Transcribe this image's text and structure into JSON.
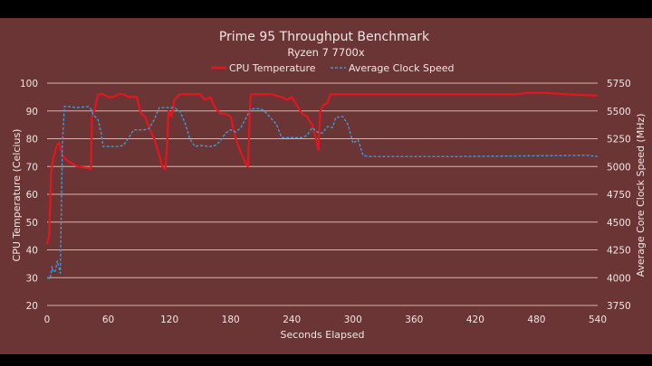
{
  "chart_data": {
    "type": "line",
    "title": "Prime 95 Throughput Benchmark",
    "subtitle": "Ryzen 7 7700x",
    "xlabel": "Seconds Elapsed",
    "ylabel_left": "CPU Temperature (Celcius)",
    "ylabel_right": "Average Core Clock Speed (MHz)",
    "xlim": [
      0,
      540
    ],
    "xticks": [
      0,
      60,
      120,
      180,
      240,
      300,
      360,
      420,
      480,
      540
    ],
    "ylim_left": [
      20,
      100
    ],
    "yticks_left": [
      20,
      30,
      40,
      50,
      60,
      70,
      80,
      90,
      100
    ],
    "ylim_right": [
      3750,
      5750
    ],
    "yticks_right": [
      3750,
      4000,
      4250,
      4500,
      4750,
      5000,
      5250,
      5500,
      5750
    ],
    "grid": true,
    "legend_position": "top-center",
    "colors": {
      "background": "#6c3535",
      "grid": "#d8b3ab",
      "temperature": "#e3161f",
      "clock": "#3b9bd8"
    },
    "series": [
      {
        "name": "CPU Temperature",
        "axis": "left",
        "style": "solid",
        "x": [
          0,
          2,
          4,
          6,
          10,
          12,
          15,
          20,
          25,
          30,
          40,
          43,
          44,
          47,
          50,
          55,
          60,
          65,
          70,
          75,
          80,
          85,
          88,
          92,
          96,
          100,
          105,
          110,
          113,
          116,
          118,
          119,
          122,
          125,
          130,
          140,
          150,
          155,
          160,
          165,
          170,
          175,
          180,
          185,
          190,
          195,
          197,
          199,
          200,
          210,
          220,
          230,
          235,
          240,
          245,
          250,
          255,
          260,
          263,
          266,
          268,
          271,
          275,
          278,
          300,
          400,
          460,
          470,
          490,
          510,
          540
        ],
        "y": [
          42,
          45,
          68,
          73,
          78,
          78.5,
          74,
          72,
          71,
          70,
          69.5,
          69,
          88,
          91,
          96,
          96,
          95,
          95,
          96,
          96,
          95,
          95,
          95,
          89,
          88,
          84,
          80,
          74,
          70,
          69,
          80,
          90,
          88,
          94,
          96,
          96,
          96,
          94,
          95,
          91,
          89,
          89,
          88,
          80,
          75,
          71,
          70,
          92,
          96,
          96,
          96,
          95,
          94,
          95,
          92,
          89,
          88,
          85,
          81,
          76,
          90,
          92,
          93,
          96,
          96,
          96,
          96,
          96.5,
          96.5,
          96,
          95.5
        ]
      },
      {
        "name": "Average Clock Speed",
        "axis": "right",
        "style": "dashed",
        "x": [
          0,
          3,
          5,
          6,
          8,
          10,
          12,
          13,
          15,
          17,
          20,
          30,
          40,
          43,
          45,
          50,
          53,
          55,
          60,
          70,
          75,
          80,
          85,
          95,
          100,
          105,
          110,
          125,
          130,
          135,
          140,
          145,
          150,
          160,
          165,
          170,
          175,
          180,
          185,
          190,
          200,
          210,
          215,
          220,
          225,
          230,
          240,
          250,
          255,
          260,
          265,
          270,
          275,
          280,
          283,
          290,
          295,
          300,
          305,
          310,
          315,
          400,
          530,
          540
        ],
        "y": [
          4000,
          3990,
          4100,
          4050,
          4060,
          4150,
          4080,
          4040,
          5200,
          5540,
          5540,
          5530,
          5540,
          5520,
          5470,
          5420,
          5300,
          5180,
          5180,
          5180,
          5190,
          5260,
          5330,
          5330,
          5340,
          5420,
          5530,
          5530,
          5500,
          5400,
          5250,
          5180,
          5190,
          5180,
          5190,
          5230,
          5300,
          5330,
          5310,
          5350,
          5520,
          5520,
          5480,
          5430,
          5380,
          5260,
          5260,
          5260,
          5280,
          5350,
          5310,
          5300,
          5360,
          5350,
          5440,
          5450,
          5380,
          5210,
          5240,
          5100,
          5090,
          5090,
          5100,
          5090
        ]
      }
    ]
  }
}
